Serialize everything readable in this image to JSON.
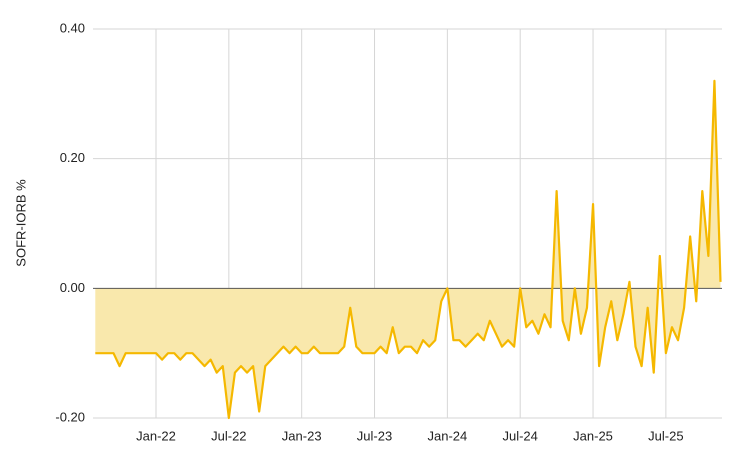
{
  "chart_data": {
    "type": "area",
    "ylabel": "SOFR-IORB %",
    "categories": [
      null,
      null,
      null,
      null,
      null,
      null,
      null,
      null,
      null,
      null,
      "Jan-22",
      null,
      null,
      null,
      null,
      null,
      null,
      null,
      null,
      null,
      null,
      null,
      "Jul-22",
      null,
      null,
      null,
      null,
      null,
      null,
      null,
      null,
      null,
      null,
      null,
      "Jan-23",
      null,
      null,
      null,
      null,
      null,
      null,
      null,
      null,
      null,
      null,
      null,
      "Jul-23",
      null,
      null,
      null,
      null,
      null,
      null,
      null,
      null,
      null,
      null,
      null,
      "Jan-24",
      null,
      null,
      null,
      null,
      null,
      null,
      null,
      null,
      null,
      null,
      null,
      "Jul-24",
      null,
      null,
      null,
      null,
      null,
      null,
      null,
      null,
      null,
      null,
      null,
      "Jan-25",
      null,
      null,
      null,
      null,
      null,
      null,
      null,
      null,
      null,
      null,
      null,
      "Jul-25",
      null,
      null,
      null,
      null,
      null,
      null,
      null,
      null,
      null
    ],
    "values": [
      -0.1,
      -0.1,
      -0.1,
      -0.1,
      -0.12,
      -0.1,
      -0.1,
      -0.1,
      -0.1,
      -0.1,
      -0.1,
      -0.11,
      -0.1,
      -0.1,
      -0.11,
      -0.1,
      -0.1,
      -0.11,
      -0.12,
      -0.11,
      -0.13,
      -0.12,
      -0.2,
      -0.13,
      -0.12,
      -0.13,
      -0.12,
      -0.19,
      -0.12,
      -0.11,
      -0.1,
      -0.09,
      -0.1,
      -0.09,
      -0.1,
      -0.1,
      -0.09,
      -0.1,
      -0.1,
      -0.1,
      -0.1,
      -0.09,
      -0.03,
      -0.09,
      -0.1,
      -0.1,
      -0.1,
      -0.09,
      -0.1,
      -0.06,
      -0.1,
      -0.09,
      -0.09,
      -0.1,
      -0.08,
      -0.09,
      -0.08,
      -0.02,
      0,
      -0.08,
      -0.08,
      -0.09,
      -0.08,
      -0.07,
      -0.08,
      -0.05,
      -0.07,
      -0.09,
      -0.08,
      -0.09,
      0,
      -0.06,
      -0.05,
      -0.07,
      -0.04,
      -0.06,
      0.15,
      -0.05,
      -0.08,
      0,
      -0.07,
      -0.03,
      0.13,
      -0.12,
      -0.06,
      -0.02,
      -0.08,
      -0.04,
      0.01,
      -0.09,
      -0.12,
      -0.03,
      -0.13,
      0.05,
      -0.1,
      -0.06,
      -0.08,
      -0.03,
      0.08,
      -0.02,
      0.15,
      0.05,
      0.32,
      0.01
    ],
    "color": "#f5b800",
    "fill_color": "#f9e8ac",
    "ylim": [
      -0.2,
      0.4
    ],
    "yticks": [
      {
        "value": -0.2,
        "label": "-0.20"
      },
      {
        "value": 0,
        "label": "0.00"
      },
      {
        "value": 0.2,
        "label": "0.20"
      },
      {
        "value": 0.4,
        "label": "0.40"
      }
    ],
    "grid": true
  }
}
